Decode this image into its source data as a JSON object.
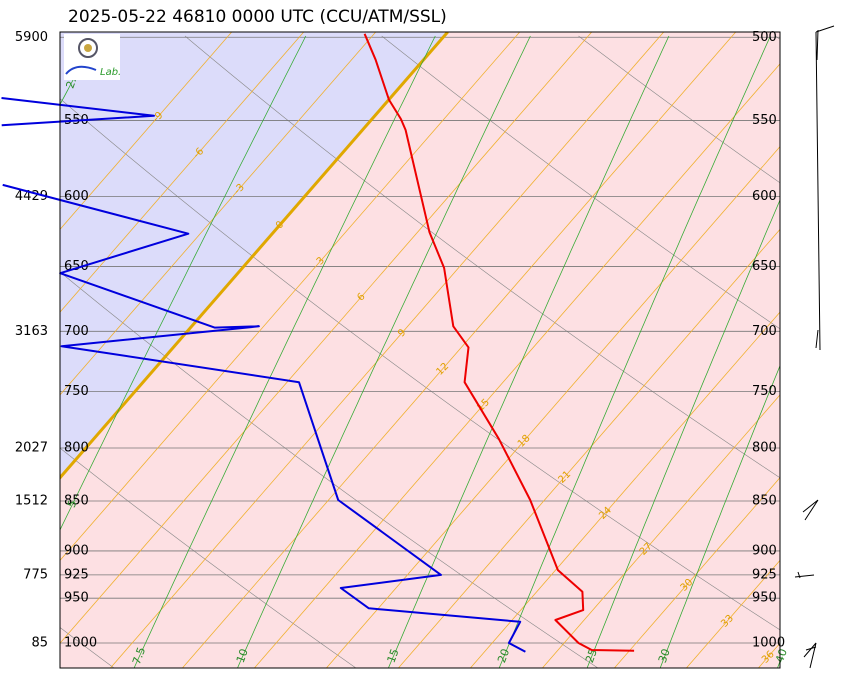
{
  "chart_data": {
    "type": "skewt",
    "title": "2025-05-22 46810 0000 UTC (CCU/ATM/SSL)",
    "logo_text": "Lab.",
    "ylim": [
      1029,
      497
    ],
    "xlim": [
      6.9,
      36.9
    ],
    "yticks": [
      500,
      550,
      600,
      650,
      700,
      750,
      800,
      850,
      900,
      925,
      950,
      1000
    ],
    "heights": [
      {
        "p": 500,
        "height": 5900
      },
      {
        "p": 600,
        "height": 4429
      },
      {
        "p": 700,
        "height": 3163
      },
      {
        "p": 800,
        "height": 2027
      },
      {
        "p": 850,
        "height": 1512
      },
      {
        "p": 925,
        "height": 775
      },
      {
        "p": 1000,
        "height": 85
      }
    ],
    "xticks": [
      -9,
      -6,
      -3,
      0,
      3,
      6,
      9,
      12,
      15,
      18,
      21,
      24,
      27,
      30,
      33,
      36
    ],
    "mixing_ratios": [
      2.5,
      5,
      7.5,
      10,
      15,
      20,
      25,
      30,
      40
    ],
    "series": [
      {
        "color": "#ee0000",
        "pressure": [
          1009,
          1008,
          1000,
          974,
          963,
          943,
          920,
          849,
          792,
          742,
          713,
          696,
          651,
          625,
          556,
          549,
          537,
          513,
          498
        ],
        "values": [
          30.2,
          28.4,
          27.6,
          25.8,
          26.6,
          25.9,
          24.1,
          20.4,
          16.9,
          13.4,
          12.3,
          10.9,
          8.4,
          6.5,
          1.8,
          1.2,
          0,
          -2.0,
          -3.4
        ]
      },
      {
        "color": "#0000dd",
        "pressure": [
          1010,
          1000,
          976,
          961,
          939,
          925,
          849,
          742,
          712,
          696,
          697,
          655,
          626,
          592,
          null,
          553,
          547,
          536
        ],
        "values": [
          25.7,
          24.7,
          24.4,
          17.6,
          15.7,
          19.4,
          12.4,
          6.5,
          -4.7,
          2.8,
          1.0,
          -7.4,
          -3.5,
          -13.0,
          null,
          -15.2,
          -9.2,
          -16.2
        ]
      }
    ]
  }
}
